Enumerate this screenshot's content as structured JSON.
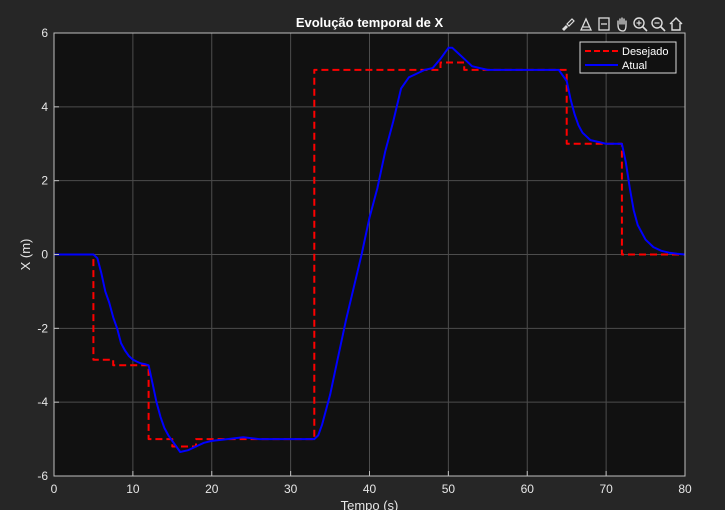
{
  "chart_data": {
    "type": "line",
    "title": "Evolução temporal de X",
    "xlabel": "Tempo (s)",
    "ylabel": "X (m)",
    "xlim": [
      0,
      80
    ],
    "ylim": [
      -6,
      6
    ],
    "xticks": [
      0,
      10,
      20,
      30,
      40,
      50,
      60,
      70,
      80
    ],
    "yticks": [
      -6,
      -4,
      -2,
      0,
      2,
      4,
      6
    ],
    "grid": true,
    "legend_position": "top-right",
    "series": [
      {
        "name": "Desejado",
        "color": "#ff0000",
        "style": "dashed",
        "x": [
          0,
          5,
          5,
          7.5,
          7.5,
          12,
          12,
          15,
          15,
          18,
          18,
          24,
          24,
          33,
          33,
          49,
          49,
          52,
          52,
          65,
          65,
          72,
          72,
          80
        ],
        "y": [
          0,
          0,
          -2.85,
          -2.85,
          -3,
          -3,
          -5,
          -5,
          -5.2,
          -5.2,
          -5,
          -5,
          -5,
          -5,
          5,
          5,
          5.2,
          5.2,
          5,
          5,
          3,
          3,
          0,
          0
        ]
      },
      {
        "name": "Atual",
        "color": "#0000ff",
        "style": "solid",
        "x": [
          0,
          5,
          5.5,
          6,
          6.5,
          7,
          7.5,
          8,
          8.5,
          9,
          9.5,
          10,
          10.5,
          11,
          11.5,
          12,
          12.5,
          13,
          13.5,
          14,
          14.5,
          15,
          15.5,
          16,
          17,
          18,
          19,
          20,
          22,
          24,
          26,
          28,
          30,
          32,
          33,
          33.5,
          34,
          35,
          36,
          37,
          38,
          39,
          40,
          41,
          42,
          43,
          44,
          45,
          46,
          47,
          48,
          49,
          50,
          50.5,
          51,
          52,
          53,
          54,
          55,
          60,
          64,
          65,
          65.5,
          66,
          66.5,
          67,
          68,
          69,
          70,
          71,
          72,
          72.5,
          73,
          73.5,
          74,
          75,
          76,
          77,
          78,
          79,
          80
        ],
        "y": [
          0,
          0,
          -0.1,
          -0.5,
          -1.0,
          -1.3,
          -1.7,
          -2.0,
          -2.4,
          -2.6,
          -2.75,
          -2.85,
          -2.9,
          -2.95,
          -2.97,
          -3.0,
          -3.5,
          -4.0,
          -4.4,
          -4.7,
          -4.9,
          -5.05,
          -5.2,
          -5.35,
          -5.3,
          -5.2,
          -5.1,
          -5.05,
          -5.0,
          -4.95,
          -5.0,
          -5.0,
          -5.0,
          -5.0,
          -5.0,
          -4.9,
          -4.6,
          -3.8,
          -2.8,
          -1.8,
          -0.9,
          0.0,
          1.0,
          1.8,
          2.8,
          3.6,
          4.5,
          4.8,
          4.9,
          5.0,
          5.05,
          5.3,
          5.6,
          5.6,
          5.5,
          5.3,
          5.1,
          5.05,
          5.0,
          5.0,
          5.0,
          4.7,
          4.2,
          3.8,
          3.5,
          3.3,
          3.1,
          3.05,
          3.0,
          3.0,
          3.0,
          2.5,
          1.8,
          1.2,
          0.8,
          0.4,
          0.2,
          0.1,
          0.05,
          0.02,
          0.0
        ]
      }
    ]
  },
  "toolbar": {
    "icons": [
      "brush-icon",
      "data-tip-icon",
      "restore-view-icon",
      "pan-icon",
      "zoom-in-icon",
      "zoom-out-icon",
      "home-icon"
    ]
  },
  "colors": {
    "figure_bg": "#262626",
    "axes_bg": "#111111",
    "grid": "#555555",
    "text": "#e6e6e6"
  }
}
